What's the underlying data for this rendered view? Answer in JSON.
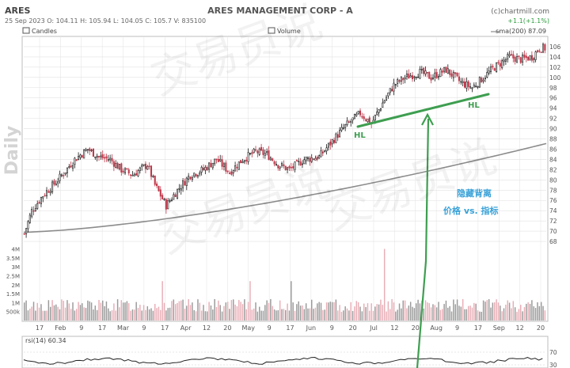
{
  "header": {
    "symbol": "ARES",
    "title": "ARES MANAGEMENT CORP - A",
    "source": "(c)chartmill.com",
    "ohlc_line": "25 Sep 2023   O: 104.11  H: 105.94  L: 104.05  C: 105.7   V: 835100",
    "change": "+1.1(+1.1%)",
    "legend_candles": "Candles",
    "legend_volume": "Volume",
    "legend_sma": "sma(200) 87.09",
    "period_label": "Daily",
    "rsi_label": "rsi(14) 60.34"
  },
  "annotations": {
    "hl_left": "HL",
    "hl_right": "HL",
    "note_line1": "隐藏背离",
    "note_line2": "价格 vs. 指标",
    "watermark": "交易员说"
  },
  "colors": {
    "up": "#1a1a1a",
    "down": "#c0394b",
    "vol_up": "#9a9a9a",
    "vol_down": "#e8aeb6",
    "sma": "#8c8c8c",
    "annotation": "#3e9e50",
    "note": "#3aa2d8",
    "grid": "#e2e2e2"
  },
  "chart_data": {
    "type": "candlestick",
    "title": "ARES MANAGEMENT CORP - A",
    "period": "Daily",
    "ylim": [
      66,
      108
    ],
    "y_ticks": [
      68,
      70,
      72,
      74,
      76,
      78,
      80,
      82,
      84,
      86,
      88,
      90,
      92,
      94,
      96,
      98,
      100,
      102,
      104,
      106
    ],
    "x_tick_labels": [
      "17",
      "Feb",
      "9",
      "17",
      "Mar",
      "9",
      "17",
      "Apr",
      "12",
      "20",
      "May",
      "9",
      "17",
      "Jun",
      "9",
      "20",
      "Jul",
      "12",
      "20",
      "Aug",
      "9",
      "17",
      "Sep",
      "12",
      "20"
    ],
    "price_points": [
      [
        0,
        69.5
      ],
      [
        4,
        74
      ],
      [
        10,
        77
      ],
      [
        18,
        80
      ],
      [
        27,
        84
      ],
      [
        34,
        86
      ],
      [
        40,
        84.5
      ],
      [
        46,
        84
      ],
      [
        52,
        82
      ],
      [
        58,
        81
      ],
      [
        66,
        83
      ],
      [
        70,
        79
      ],
      [
        76,
        75
      ],
      [
        82,
        78
      ],
      [
        89,
        81
      ],
      [
        96,
        82
      ],
      [
        103,
        84
      ],
      [
        110,
        81.5
      ],
      [
        117,
        84
      ],
      [
        124,
        85.5
      ],
      [
        130,
        85
      ],
      [
        136,
        83
      ],
      [
        142,
        82
      ],
      [
        150,
        84
      ],
      [
        158,
        84.5
      ],
      [
        166,
        88
      ],
      [
        172,
        90.5
      ],
      [
        180,
        93
      ],
      [
        186,
        91
      ],
      [
        192,
        95
      ],
      [
        198,
        98.5
      ],
      [
        204,
        100
      ],
      [
        212,
        101
      ],
      [
        218,
        100
      ],
      [
        226,
        101.5
      ],
      [
        234,
        99
      ],
      [
        240,
        98
      ],
      [
        246,
        100
      ],
      [
        252,
        102
      ],
      [
        260,
        104
      ],
      [
        266,
        103.5
      ],
      [
        272,
        104
      ],
      [
        276,
        105.7
      ]
    ],
    "sma200": {
      "name": "sma(200)",
      "start": 69.8,
      "end": 87.09
    },
    "volume": {
      "ylim_label_ticks": [
        "500k",
        "1M",
        "1.5M",
        "2M",
        "2.5M",
        "3M",
        "3.5M",
        "4M"
      ],
      "spike_value": 4000000,
      "typical": 800000
    },
    "rsi": {
      "name": "rsi(14)",
      "last": 60.34,
      "ticks": [
        30,
        70
      ]
    },
    "annotations": [
      {
        "text": "HL",
        "x_day": 192,
        "y": 90
      },
      {
        "text": "HL",
        "x_day": 255,
        "y": 96.3
      }
    ]
  }
}
